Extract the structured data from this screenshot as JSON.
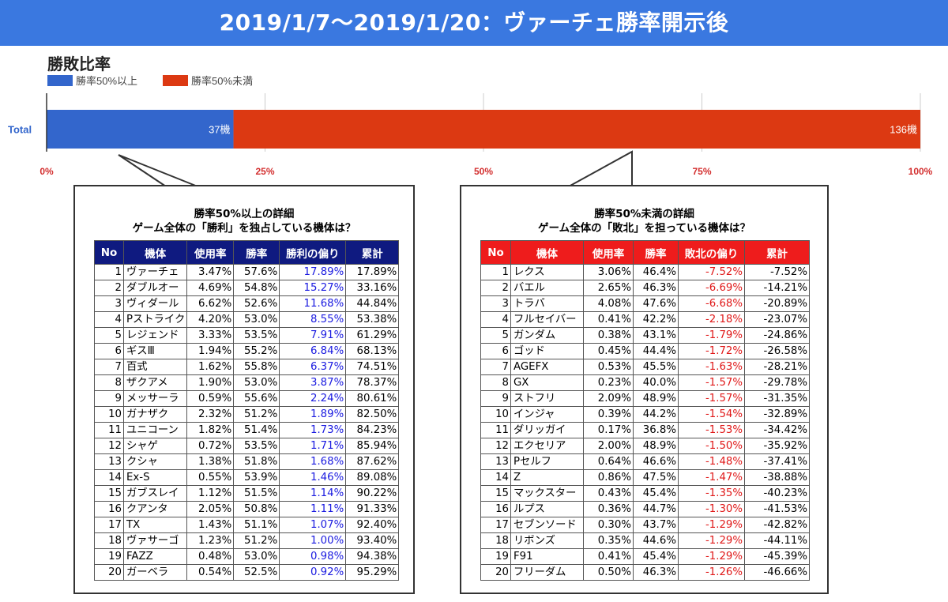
{
  "header": {
    "title": "2019/1/7～2019/1/20：ヴァーチェ勝率開示後"
  },
  "chart_data": {
    "type": "bar",
    "orientation": "horizontal",
    "stacked": true,
    "title": "勝敗比率",
    "categories": [
      "Total"
    ],
    "series": [
      {
        "name": "勝率50%以上",
        "values": [
          37
        ],
        "label": "37機",
        "color": "#3366cc"
      },
      {
        "name": "勝率50%未満",
        "values": [
          136
        ],
        "label": "136機",
        "color": "#dc3912"
      }
    ],
    "axis": {
      "ticks": [
        "0%",
        "25%",
        "50%",
        "75%",
        "100%"
      ],
      "tick_values": [
        0,
        25,
        50,
        75,
        100
      ]
    },
    "grid": true,
    "legend": "top-left"
  },
  "left_panel": {
    "title_line1": "勝率50%以上の詳細",
    "title_line2": "ゲーム全体の「勝利」を独占している機体は？",
    "headers": [
      "No",
      "機体",
      "使用率",
      "勝率",
      "勝利の偏り",
      "累計"
    ],
    "rows": [
      [
        "1",
        "ヴァーチェ",
        "3.47%",
        "57.6%",
        "17.89%",
        "17.89%"
      ],
      [
        "2",
        "ダブルオー",
        "4.69%",
        "54.8%",
        "15.27%",
        "33.16%"
      ],
      [
        "3",
        "ヴィダール",
        "6.62%",
        "52.6%",
        "11.68%",
        "44.84%"
      ],
      [
        "4",
        "Pストライク",
        "4.20%",
        "53.0%",
        "8.55%",
        "53.38%"
      ],
      [
        "5",
        "レジェンド",
        "3.33%",
        "53.5%",
        "7.91%",
        "61.29%"
      ],
      [
        "6",
        "ギスⅢ",
        "1.94%",
        "55.2%",
        "6.84%",
        "68.13%"
      ],
      [
        "7",
        "百式",
        "1.62%",
        "55.8%",
        "6.37%",
        "74.51%"
      ],
      [
        "8",
        "ザクアメ",
        "1.90%",
        "53.0%",
        "3.87%",
        "78.37%"
      ],
      [
        "9",
        "メッサーラ",
        "0.59%",
        "55.6%",
        "2.24%",
        "80.61%"
      ],
      [
        "10",
        "ガナザク",
        "2.32%",
        "51.2%",
        "1.89%",
        "82.50%"
      ],
      [
        "11",
        "ユニコーン",
        "1.82%",
        "51.4%",
        "1.73%",
        "84.23%"
      ],
      [
        "12",
        "シャゲ",
        "0.72%",
        "53.5%",
        "1.71%",
        "85.94%"
      ],
      [
        "13",
        "クシャ",
        "1.38%",
        "51.8%",
        "1.68%",
        "87.62%"
      ],
      [
        "14",
        "Ex-S",
        "0.55%",
        "53.9%",
        "1.46%",
        "89.08%"
      ],
      [
        "15",
        "ガブスレイ",
        "1.12%",
        "51.5%",
        "1.14%",
        "90.22%"
      ],
      [
        "16",
        "クアンタ",
        "2.05%",
        "50.8%",
        "1.11%",
        "91.33%"
      ],
      [
        "17",
        "TX",
        "1.43%",
        "51.1%",
        "1.07%",
        "92.40%"
      ],
      [
        "18",
        "ヴァサーゴ",
        "1.23%",
        "51.2%",
        "1.00%",
        "93.40%"
      ],
      [
        "19",
        "FAZZ",
        "0.48%",
        "53.0%",
        "0.98%",
        "94.38%"
      ],
      [
        "20",
        "ガーベラ",
        "0.54%",
        "52.5%",
        "0.92%",
        "95.29%"
      ]
    ]
  },
  "right_panel": {
    "title_line1": "勝率50%未満の詳細",
    "title_line2": "ゲーム全体の「敗北」を担っている機体は？",
    "headers": [
      "No",
      "機体",
      "使用率",
      "勝率",
      "敗北の偏り",
      "累計"
    ],
    "rows": [
      [
        "1",
        "レクス",
        "3.06%",
        "46.4%",
        "-7.52%",
        "-7.52%"
      ],
      [
        "2",
        "バエル",
        "2.65%",
        "46.3%",
        "-6.69%",
        "-14.21%"
      ],
      [
        "3",
        "トラバ",
        "4.08%",
        "47.6%",
        "-6.68%",
        "-20.89%"
      ],
      [
        "4",
        "フルセイバー",
        "0.41%",
        "42.2%",
        "-2.18%",
        "-23.07%"
      ],
      [
        "5",
        "ガンダム",
        "0.38%",
        "43.1%",
        "-1.79%",
        "-24.86%"
      ],
      [
        "6",
        "ゴッド",
        "0.45%",
        "44.4%",
        "-1.72%",
        "-26.58%"
      ],
      [
        "7",
        "AGEFX",
        "0.53%",
        "45.5%",
        "-1.63%",
        "-28.21%"
      ],
      [
        "8",
        "GX",
        "0.23%",
        "40.0%",
        "-1.57%",
        "-29.78%"
      ],
      [
        "9",
        "ストフリ",
        "2.09%",
        "48.9%",
        "-1.57%",
        "-31.35%"
      ],
      [
        "10",
        "インジャ",
        "0.39%",
        "44.2%",
        "-1.54%",
        "-32.89%"
      ],
      [
        "11",
        "ダリッガイ",
        "0.17%",
        "36.8%",
        "-1.53%",
        "-34.42%"
      ],
      [
        "12",
        "エクセリア",
        "2.00%",
        "48.9%",
        "-1.50%",
        "-35.92%"
      ],
      [
        "13",
        "Pセルフ",
        "0.64%",
        "46.6%",
        "-1.48%",
        "-37.41%"
      ],
      [
        "14",
        "Z",
        "0.86%",
        "47.5%",
        "-1.47%",
        "-38.88%"
      ],
      [
        "15",
        "マックスター",
        "0.43%",
        "45.4%",
        "-1.35%",
        "-40.23%"
      ],
      [
        "16",
        "ルプス",
        "0.36%",
        "44.7%",
        "-1.30%",
        "-41.53%"
      ],
      [
        "17",
        "セブンソード",
        "0.30%",
        "43.7%",
        "-1.29%",
        "-42.82%"
      ],
      [
        "18",
        "リボンズ",
        "0.35%",
        "44.6%",
        "-1.29%",
        "-44.11%"
      ],
      [
        "19",
        "F91",
        "0.41%",
        "45.4%",
        "-1.29%",
        "-45.39%"
      ],
      [
        "20",
        "フリーダム",
        "0.50%",
        "46.3%",
        "-1.26%",
        "-46.66%"
      ]
    ]
  }
}
